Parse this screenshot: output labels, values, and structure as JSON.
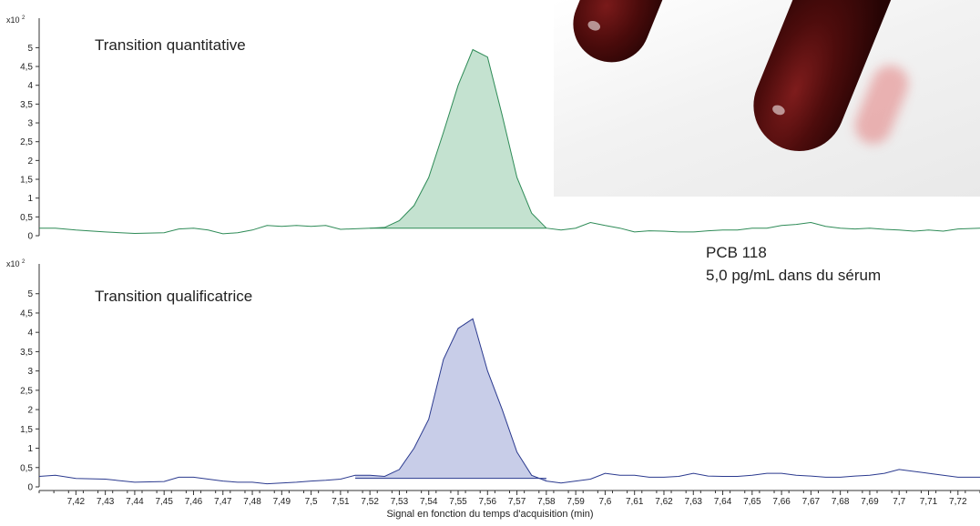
{
  "annotation": {
    "compound": "PCB 118",
    "concentration": "5,0 pg/mL dans du sérum"
  },
  "xlabel": "Signal en fonction du temps d'acquisition (min)",
  "colors": {
    "quantitative": "#2e8b57",
    "quantitative_fill": "#c4e2d0",
    "qualitative": "#2b3a8f",
    "qualitative_fill": "#c8cde8",
    "axis": "#333333"
  },
  "photo": {
    "description_icon": "blood-tubes-photo"
  },
  "chart_data": [
    {
      "type": "area",
      "title": "Transition quantitative",
      "y_multiplier": "x10",
      "y_multiplier_exp": "2",
      "yticks": [
        "0",
        "0,5",
        "1",
        "1,5",
        "2",
        "2,5",
        "3",
        "3,5",
        "4",
        "4,5",
        "5"
      ],
      "ylim": [
        0,
        5.3
      ],
      "xlim": [
        7.4075,
        7.7275
      ],
      "x": [
        7.4075,
        7.413,
        7.42,
        7.43,
        7.44,
        7.45,
        7.455,
        7.46,
        7.465,
        7.47,
        7.475,
        7.48,
        7.485,
        7.49,
        7.495,
        7.5,
        7.505,
        7.51,
        7.52,
        7.525,
        7.53,
        7.535,
        7.54,
        7.545,
        7.55,
        7.555,
        7.56,
        7.565,
        7.57,
        7.575,
        7.58,
        7.585,
        7.59,
        7.595,
        7.6,
        7.605,
        7.61,
        7.615,
        7.62,
        7.625,
        7.63,
        7.635,
        7.64,
        7.645,
        7.65,
        7.655,
        7.66,
        7.665,
        7.67,
        7.675,
        7.68,
        7.685,
        7.69,
        7.695,
        7.7,
        7.705,
        7.71,
        7.715,
        7.72,
        7.7275
      ],
      "values": [
        0.2,
        0.2,
        0.15,
        0.1,
        0.06,
        0.08,
        0.18,
        0.2,
        0.15,
        0.05,
        0.08,
        0.15,
        0.27,
        0.25,
        0.27,
        0.25,
        0.27,
        0.17,
        0.2,
        0.22,
        0.4,
        0.8,
        1.55,
        2.75,
        4.0,
        4.95,
        4.75,
        3.2,
        1.55,
        0.6,
        0.2,
        0.15,
        0.2,
        0.35,
        0.27,
        0.2,
        0.1,
        0.13,
        0.12,
        0.1,
        0.1,
        0.13,
        0.15,
        0.15,
        0.2,
        0.2,
        0.27,
        0.3,
        0.35,
        0.25,
        0.2,
        0.18,
        0.2,
        0.17,
        0.15,
        0.12,
        0.15,
        0.12,
        0.18,
        0.2
      ],
      "baseline": {
        "start_x": 7.52,
        "end_x": 7.58,
        "value": 0.2
      }
    },
    {
      "type": "area",
      "title": "Transition qualificatrice",
      "y_multiplier": "x10",
      "y_multiplier_exp": "2",
      "yticks": [
        "0",
        "0,5",
        "1",
        "1,5",
        "2",
        "2,5",
        "3",
        "3,5",
        "4",
        "4,5",
        "5"
      ],
      "ylim": [
        0,
        5.3
      ],
      "xlim": [
        7.4075,
        7.7275
      ],
      "x": [
        7.4075,
        7.413,
        7.42,
        7.43,
        7.44,
        7.45,
        7.455,
        7.46,
        7.465,
        7.47,
        7.475,
        7.48,
        7.485,
        7.49,
        7.495,
        7.5,
        7.505,
        7.51,
        7.515,
        7.52,
        7.525,
        7.53,
        7.535,
        7.54,
        7.545,
        7.55,
        7.555,
        7.56,
        7.565,
        7.57,
        7.575,
        7.58,
        7.585,
        7.59,
        7.595,
        7.6,
        7.605,
        7.61,
        7.615,
        7.62,
        7.625,
        7.63,
        7.635,
        7.64,
        7.645,
        7.65,
        7.655,
        7.66,
        7.665,
        7.67,
        7.675,
        7.68,
        7.685,
        7.69,
        7.695,
        7.7,
        7.705,
        7.71,
        7.715,
        7.72,
        7.7275
      ],
      "values": [
        0.27,
        0.3,
        0.22,
        0.2,
        0.12,
        0.14,
        0.25,
        0.25,
        0.2,
        0.15,
        0.12,
        0.12,
        0.08,
        0.1,
        0.12,
        0.15,
        0.17,
        0.2,
        0.3,
        0.3,
        0.27,
        0.45,
        1.0,
        1.75,
        3.3,
        4.1,
        4.35,
        3.0,
        2.0,
        0.9,
        0.3,
        0.15,
        0.1,
        0.15,
        0.2,
        0.35,
        0.3,
        0.3,
        0.25,
        0.25,
        0.27,
        0.35,
        0.28,
        0.27,
        0.27,
        0.3,
        0.35,
        0.35,
        0.3,
        0.28,
        0.25,
        0.25,
        0.28,
        0.3,
        0.35,
        0.45,
        0.4,
        0.35,
        0.3,
        0.25,
        0.25
      ],
      "baseline": {
        "start_x": 7.515,
        "end_x": 7.58,
        "value": 0.22
      }
    }
  ],
  "xticks": [
    "7,42",
    "7,43",
    "7,44",
    "7,45",
    "7,46",
    "7,47",
    "7,48",
    "7,49",
    "7,5",
    "7,51",
    "7,52",
    "7,53",
    "7,54",
    "7,55",
    "7,56",
    "7,57",
    "7,58",
    "7,59",
    "7,6",
    "7,61",
    "7,62",
    "7,63",
    "7,64",
    "7,65",
    "7,66",
    "7,67",
    "7,68",
    "7,69",
    "7,7",
    "7,71",
    "7,72"
  ]
}
